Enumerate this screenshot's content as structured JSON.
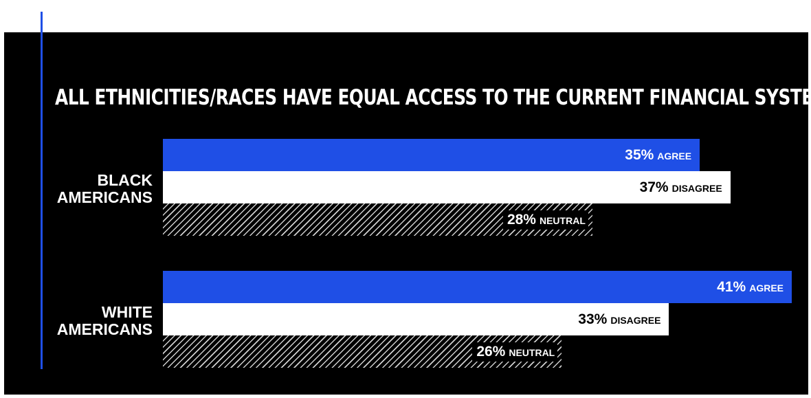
{
  "chart_data": {
    "type": "bar",
    "orientation": "horizontal",
    "title": "ALL ETHNICITIES/RACES HAVE EQUAL ACCESS TO THE CURRENT FINANCIAL SYSTEM",
    "unit": "%",
    "categories": [
      "BLACK AMERICANS",
      "WHITE AMERICANS"
    ],
    "category_lines": [
      [
        "BLACK",
        "AMERICANS"
      ],
      [
        "WHITE",
        "AMERICANS"
      ]
    ],
    "series": [
      {
        "name": "AGREE",
        "values": [
          35,
          41
        ],
        "color": "#1f4fe6"
      },
      {
        "name": "DISAGREE",
        "values": [
          37,
          33
        ],
        "color": "#ffffff"
      },
      {
        "name": "NEUTRAL",
        "values": [
          28,
          26
        ],
        "color": "hatched"
      }
    ],
    "xlim": [
      0,
      41
    ],
    "grid": false,
    "legend": "none"
  },
  "colors": {
    "background": "#000000",
    "accent": "#1f4fe6",
    "text": "#ffffff"
  }
}
